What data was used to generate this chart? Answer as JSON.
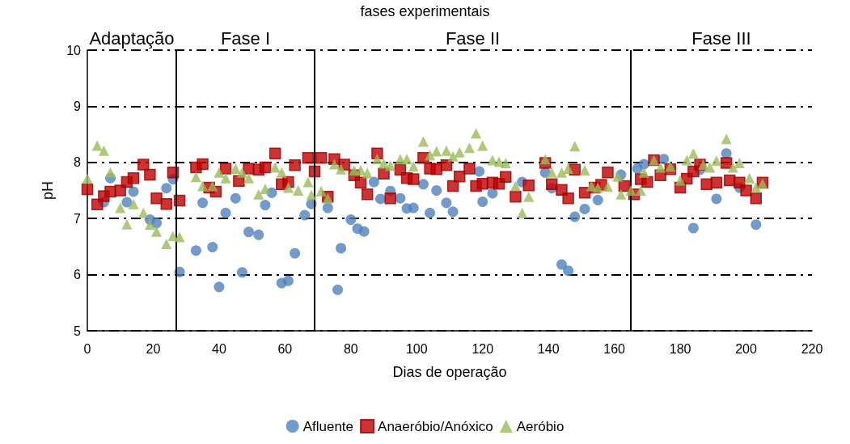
{
  "chart_data": {
    "type": "scatter",
    "title": "fases experimentais",
    "xlabel": "Dias de operação",
    "ylabel": "pH",
    "xlim": [
      0,
      220
    ],
    "xticks": [
      0,
      20,
      40,
      60,
      80,
      100,
      120,
      140,
      160,
      180,
      200,
      220
    ],
    "ylim": [
      5,
      10
    ],
    "yticks": [
      5,
      6,
      7,
      8,
      9,
      10
    ],
    "grid": "y",
    "legend": "bottom",
    "ref_lines": [
      {
        "axis": "x",
        "value": 27,
        "color": "#000000"
      },
      {
        "axis": "x",
        "value": 69,
        "color": "#000000"
      },
      {
        "axis": "x",
        "value": 165,
        "color": "#000000"
      }
    ],
    "annotations": [
      "Adaptação",
      "Fase I",
      "Fase II",
      "Fase III"
    ],
    "series": [
      {
        "name": "Afluente",
        "color": "#4f81bd",
        "marker": "circle",
        "x": [
          5,
          7,
          12,
          14,
          19,
          21,
          24,
          26,
          28,
          33,
          35,
          38,
          40,
          42,
          45,
          47,
          49,
          52,
          54,
          56,
          59,
          61,
          63,
          66,
          68,
          73,
          76,
          77,
          80,
          82,
          84,
          87,
          89,
          92,
          95,
          97,
          99,
          102,
          104,
          106,
          109,
          111,
          119,
          120,
          123,
          132,
          139,
          141,
          144,
          146,
          148,
          151,
          155,
          162,
          167,
          169,
          175,
          184,
          186,
          191,
          194,
          198,
          203
        ],
        "values": [
          7.29,
          7.72,
          7.29,
          7.48,
          6.98,
          6.92,
          7.54,
          7.7,
          6.05,
          6.43,
          7.28,
          6.49,
          5.78,
          7.1,
          7.36,
          6.04,
          6.76,
          6.71,
          7.24,
          7.46,
          5.85,
          5.89,
          6.38,
          7.06,
          7.26,
          7.19,
          5.73,
          6.47,
          6.98,
          6.82,
          6.77,
          7.65,
          7.35,
          7.49,
          7.36,
          7.18,
          7.19,
          7.61,
          7.1,
          7.5,
          7.28,
          7.12,
          7.84,
          7.3,
          7.45,
          7.65,
          7.82,
          7.54,
          6.18,
          6.07,
          7.03,
          7.17,
          7.33,
          7.78,
          7.89,
          7.97,
          8.06,
          6.83,
          7.87,
          7.35,
          8.16,
          7.55,
          6.89
        ]
      },
      {
        "name": "Anaeróbio/Anóxico",
        "color": "#c00000",
        "marker": "square",
        "x": [
          0,
          3,
          5,
          7,
          10,
          12,
          14,
          17,
          19,
          21,
          24,
          26,
          28,
          33,
          35,
          37,
          39,
          42,
          46,
          49,
          52,
          54,
          57,
          59,
          61,
          63,
          67,
          69,
          71,
          73,
          75,
          78,
          81,
          83,
          85,
          88,
          90,
          92,
          95,
          97,
          99,
          102,
          104,
          106,
          109,
          111,
          113,
          116,
          118,
          120,
          123,
          125,
          127,
          130,
          134,
          139,
          141,
          144,
          146,
          148,
          151,
          154,
          156,
          158,
          163,
          166,
          168,
          170,
          172,
          174,
          177,
          180,
          182,
          184,
          186,
          188,
          191,
          194,
          195,
          198,
          200,
          203,
          205
        ],
        "values": [
          7.52,
          7.25,
          7.4,
          7.48,
          7.5,
          7.65,
          7.72,
          7.96,
          7.78,
          7.36,
          7.26,
          7.82,
          7.32,
          7.91,
          7.97,
          7.55,
          7.48,
          7.89,
          7.67,
          7.89,
          7.87,
          7.91,
          8.16,
          7.61,
          7.65,
          7.95,
          8.08,
          7.84,
          8.08,
          7.39,
          8.06,
          7.96,
          7.77,
          7.64,
          7.43,
          8.16,
          7.8,
          7.36,
          7.87,
          7.72,
          7.7,
          8.08,
          7.89,
          7.88,
          7.95,
          7.58,
          7.75,
          7.89,
          7.58,
          7.62,
          7.64,
          7.62,
          7.74,
          7.39,
          7.59,
          7.99,
          7.61,
          7.51,
          7.36,
          7.87,
          7.46,
          7.55,
          7.6,
          7.82,
          7.58,
          7.43,
          7.7,
          7.65,
          8.04,
          7.77,
          7.88,
          7.55,
          7.71,
          7.84,
          7.96,
          7.61,
          7.64,
          7.99,
          7.68,
          7.64,
          7.5,
          7.36,
          7.64
        ]
      },
      {
        "name": "Aeróbio",
        "color": "#9bbb59",
        "marker": "triangle",
        "x": [
          0,
          3,
          5,
          7,
          10,
          12,
          14,
          17,
          19,
          21,
          24,
          26,
          28,
          33,
          35,
          38,
          40,
          42,
          45,
          47,
          49,
          52,
          54,
          57,
          59,
          61,
          64,
          67,
          68,
          71,
          73,
          75,
          77,
          81,
          83,
          85,
          88,
          90,
          92,
          95,
          97,
          99,
          102,
          104,
          106,
          109,
          111,
          113,
          116,
          118,
          120,
          123,
          125,
          127,
          130,
          132,
          134,
          139,
          141,
          144,
          146,
          148,
          151,
          153,
          155,
          158,
          161,
          162,
          165,
          168,
          169,
          172,
          174,
          177,
          180,
          182,
          184,
          187,
          189,
          191,
          194,
          196,
          198,
          201,
          203,
          205
        ],
        "values": [
          7.71,
          8.3,
          8.21,
          7.82,
          7.19,
          6.9,
          7.26,
          7.1,
          6.89,
          6.77,
          6.55,
          6.69,
          6.67,
          7.74,
          7.58,
          7.58,
          7.82,
          7.72,
          7.89,
          7.82,
          7.72,
          7.43,
          7.53,
          7.91,
          7.82,
          7.55,
          7.5,
          7.65,
          7.42,
          7.49,
          7.36,
          7.97,
          7.88,
          7.86,
          7.86,
          7.81,
          8.06,
          7.98,
          7.94,
          8.06,
          8.06,
          7.93,
          8.37,
          8.13,
          8.2,
          8.21,
          8.11,
          8.18,
          8.26,
          8.52,
          8.3,
          8.04,
          8.01,
          7.99,
          7.58,
          7.1,
          7.39,
          8.06,
          7.82,
          7.82,
          7.89,
          8.29,
          7.86,
          7.58,
          7.55,
          7.57,
          7.75,
          7.43,
          7.5,
          7.5,
          7.82,
          8.04,
          7.91,
          7.93,
          7.68,
          8.04,
          8.16,
          7.96,
          7.91,
          8.03,
          8.42,
          7.91,
          7.99,
          7.72,
          7.55,
          7.62
        ]
      }
    ]
  }
}
